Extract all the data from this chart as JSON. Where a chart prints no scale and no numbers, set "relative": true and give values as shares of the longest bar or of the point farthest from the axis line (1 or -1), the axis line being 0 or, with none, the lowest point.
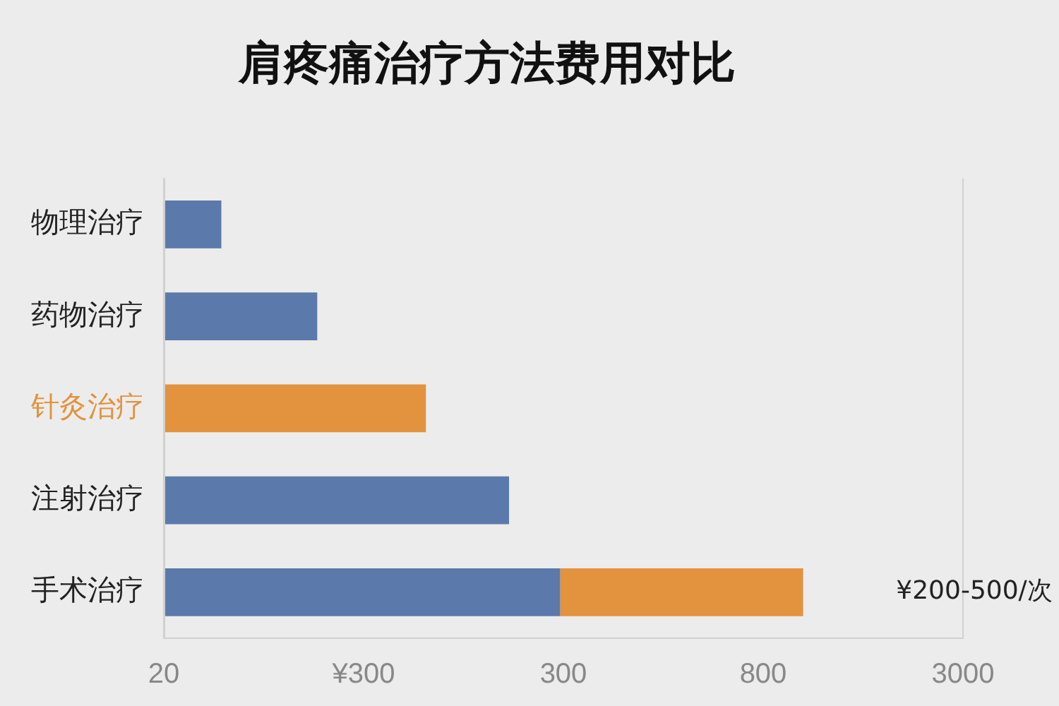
{
  "chart_data": {
    "type": "bar",
    "orientation": "horizontal",
    "stacked": true,
    "relative": true,
    "title": "肩疼痛治疗方法费用对比",
    "categories": [
      "物理治疗",
      "药物治疗",
      "针灸治疗",
      "注射治疗",
      "手术治疗"
    ],
    "series": [
      {
        "color": "#5b7aab",
        "values": [
          0.09,
          0.24,
          null,
          0.54,
          0.62
        ]
      },
      {
        "color": "#e3923d",
        "values": [
          null,
          null,
          0.41,
          null,
          0.38
        ]
      }
    ],
    "annotations": [
      "¥200-500/次",
      "20",
      "¥300",
      "300",
      "800",
      "3000"
    ],
    "grid": false,
    "legend": false
  }
}
